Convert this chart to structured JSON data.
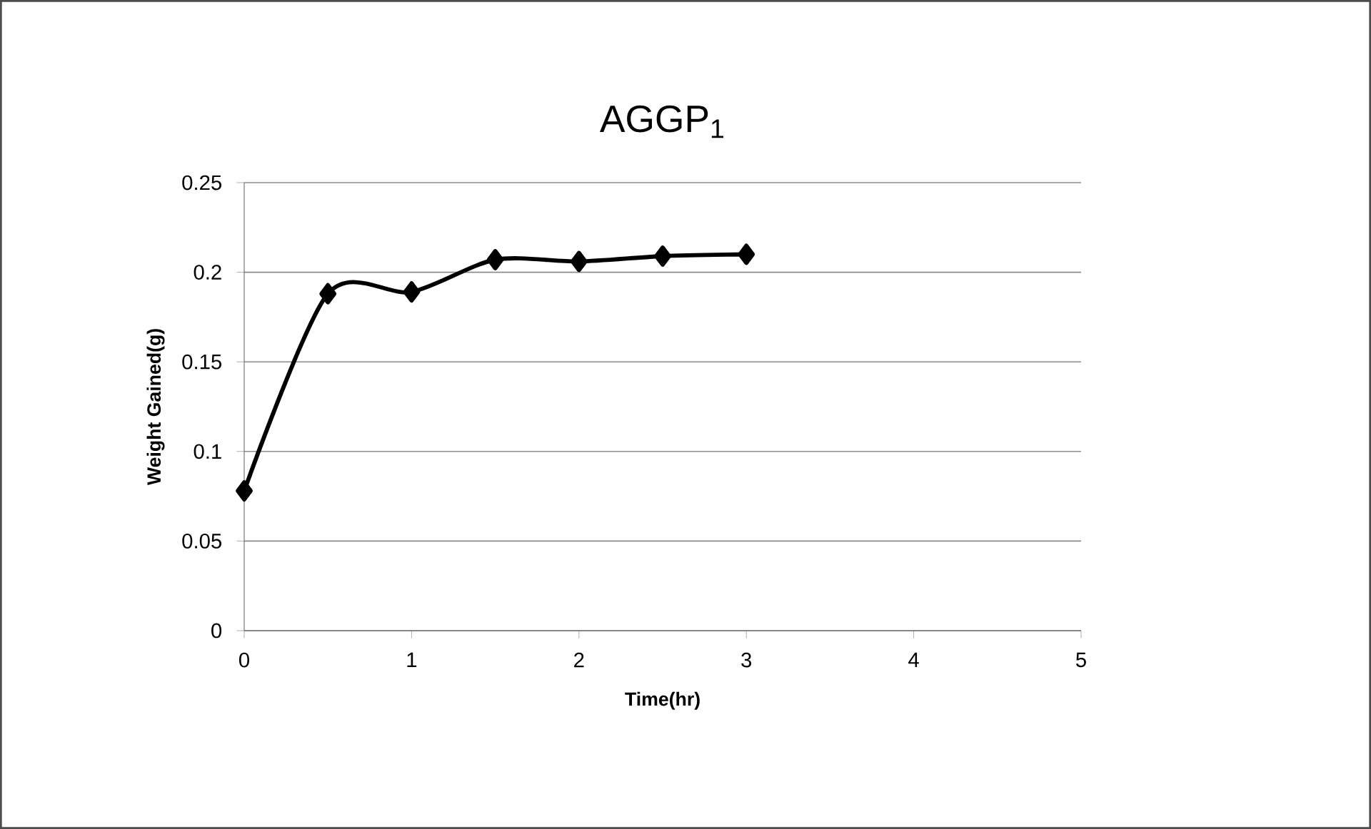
{
  "chart_data": {
    "type": "line",
    "title": "AGGP$_{1}$",
    "xlabel": "Time(hr)",
    "ylabel": "Weight Gained(g)",
    "x": [
      0,
      0.5,
      1,
      1.5,
      2,
      2.5,
      3
    ],
    "series": [
      {
        "color": "#000000",
        "values": [
          0.078,
          0.188,
          0.189,
          0.207,
          0.206,
          0.209,
          0.21
        ]
      }
    ],
    "xlim": [
      0,
      5
    ],
    "xticks": [
      0,
      1,
      2,
      3,
      4,
      5
    ],
    "ylim": [
      0,
      0.25
    ],
    "yticks": [
      0,
      0.05,
      0.1,
      0.15,
      0.2,
      0.25
    ],
    "grid": "y",
    "marker": "diamond",
    "line_style": "solid"
  }
}
